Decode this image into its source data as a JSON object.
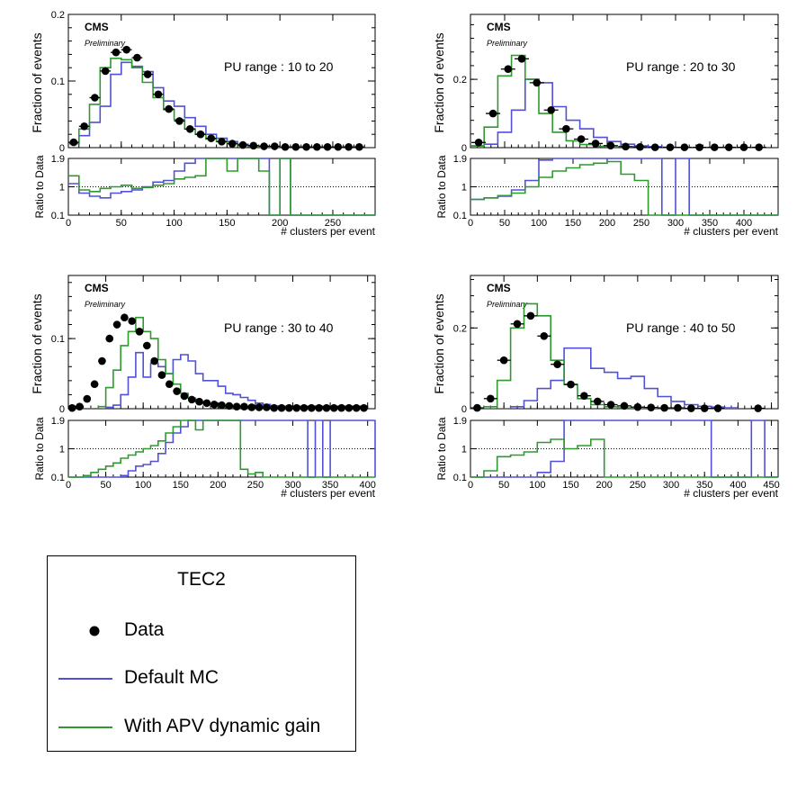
{
  "colors": {
    "data": "#000000",
    "default_mc": "#5050d8",
    "apv": "#2e9a2e"
  },
  "common": {
    "experiment": "CMS",
    "status": "Preliminary",
    "ylabel_top": "Fraction of events",
    "ylabel_ratio": "Ratio to Data",
    "xlabel": "# clusters per event"
  },
  "legend": {
    "title": "TEC2",
    "entries": [
      {
        "label": "Data",
        "icon": "filled-circle-marker"
      },
      {
        "label": "Default MC",
        "icon": "blue-line"
      },
      {
        "label": "With APV dynamic gain",
        "icon": "green-line"
      }
    ]
  },
  "chart_data": [
    {
      "type": "histogram",
      "annotation": "PU range : 10 to 20",
      "xlim": [
        0,
        290
      ],
      "xticks": [
        0,
        50,
        100,
        150,
        200,
        250
      ],
      "ylim": [
        0,
        0.2
      ],
      "yticks": [
        {
          "v": 0,
          "l": "0"
        },
        {
          "v": 0.1,
          "l": "0.1"
        },
        {
          "v": 0.2,
          "l": "0.2"
        }
      ],
      "ratio_ylim": [
        0.1,
        1.9
      ],
      "ratio_yticks": [
        "0.1",
        "1",
        "1.9"
      ],
      "data_x": [
        5,
        15,
        25,
        35,
        45,
        55,
        65,
        75,
        85,
        95,
        105,
        115,
        125,
        135,
        145,
        155,
        165,
        175,
        185,
        195,
        205,
        215,
        225,
        235,
        245,
        255,
        265,
        275
      ],
      "data_y": [
        0.008,
        0.032,
        0.075,
        0.115,
        0.143,
        0.147,
        0.135,
        0.11,
        0.08,
        0.058,
        0.04,
        0.028,
        0.02,
        0.014,
        0.009,
        0.006,
        0.004,
        0.003,
        0.002,
        0.002,
        0.001,
        0.001,
        0.001,
        0.001,
        0.001,
        0.001,
        0.001,
        0.001
      ],
      "mc_edges": [
        0,
        10,
        20,
        30,
        40,
        50,
        60,
        70,
        80,
        90,
        100,
        110,
        120,
        130,
        140,
        150,
        160,
        170,
        180,
        190,
        200,
        210
      ],
      "mc_default": [
        0.006,
        0.018,
        0.038,
        0.062,
        0.11,
        0.128,
        0.122,
        0.114,
        0.09,
        0.07,
        0.062,
        0.045,
        0.032,
        0.02,
        0.014,
        0.009,
        0.005,
        0.003,
        0.002,
        0.001,
        0
      ],
      "mc_apv": [
        0.006,
        0.028,
        0.065,
        0.12,
        0.134,
        0.132,
        0.12,
        0.098,
        0.075,
        0.057,
        0.042,
        0.028,
        0.02,
        0.013,
        0.009,
        0.006,
        0.003,
        0.002,
        0.001,
        0.001,
        0
      ],
      "ratio_edges": [
        0,
        10,
        20,
        30,
        40,
        50,
        60,
        70,
        80,
        90,
        100,
        110,
        120,
        130,
        140,
        150,
        160,
        170,
        180,
        190,
        200,
        210,
        220,
        290
      ],
      "ratio_default": [
        1.1,
        0.8,
        0.7,
        0.65,
        0.8,
        0.85,
        0.9,
        1.0,
        1.15,
        1.2,
        1.5,
        1.75,
        1.9,
        1.9,
        1.9,
        1.9,
        1.9,
        1.9,
        1.9,
        0.1,
        1.9,
        0.1,
        0.1
      ],
      "ratio_apv": [
        1.35,
        0.9,
        0.85,
        0.95,
        1.0,
        1.05,
        0.95,
        0.98,
        1.05,
        1.1,
        1.25,
        1.3,
        1.35,
        1.9,
        1.9,
        1.5,
        1.9,
        1.9,
        1.5,
        0.1,
        1.9,
        0.1,
        0.1
      ]
    },
    {
      "type": "histogram",
      "annotation": "PU range : 20 to 30",
      "xlim": [
        0,
        450
      ],
      "xticks": [
        0,
        50,
        100,
        150,
        200,
        250,
        300,
        350,
        400
      ],
      "ylim": [
        0,
        0.39
      ],
      "yticks": [
        {
          "v": 0,
          "l": "0"
        },
        {
          "v": 0.2,
          "l": "0.2"
        }
      ],
      "ratio_ylim": [
        0.1,
        1.9
      ],
      "ratio_yticks": [
        "0.1",
        "1",
        "1.9"
      ],
      "data_x": [
        12,
        33,
        55,
        75,
        97,
        118,
        140,
        162,
        183,
        205,
        227,
        248,
        270,
        292,
        313,
        335,
        357,
        378,
        400,
        422
      ],
      "data_y": [
        0.015,
        0.1,
        0.23,
        0.26,
        0.19,
        0.11,
        0.055,
        0.025,
        0.012,
        0.006,
        0.003,
        0.002,
        0.001,
        0.001,
        0.001,
        0.001,
        0.001,
        0.001,
        0.001,
        0.001
      ],
      "mc_edges": [
        0,
        20,
        40,
        60,
        80,
        100,
        120,
        140,
        160,
        180,
        200,
        220,
        240,
        260,
        280,
        300,
        320
      ],
      "mc_default": [
        0.005,
        0.01,
        0.045,
        0.11,
        0.2,
        0.19,
        0.12,
        0.08,
        0.055,
        0.03,
        0.018,
        0.01,
        0.005,
        0.003,
        0.001,
        0
      ],
      "mc_apv": [
        0.005,
        0.06,
        0.21,
        0.27,
        0.2,
        0.1,
        0.045,
        0.02,
        0.009,
        0.004,
        0.002,
        0.001,
        0,
        0,
        0,
        0
      ],
      "ratio_edges": [
        0,
        20,
        40,
        60,
        80,
        100,
        120,
        140,
        160,
        180,
        200,
        220,
        240,
        260,
        280,
        300,
        320,
        450
      ],
      "ratio_default": [
        0.6,
        0.65,
        0.7,
        0.9,
        1.2,
        1.85,
        1.9,
        1.9,
        1.9,
        1.9,
        1.9,
        1.9,
        1.9,
        1.9,
        0.1,
        1.9,
        0.1
      ],
      "ratio_apv": [
        0.6,
        0.65,
        0.72,
        0.8,
        1.0,
        1.3,
        1.5,
        1.6,
        1.7,
        1.75,
        1.8,
        1.4,
        1.2,
        0.1,
        0.1,
        0.1,
        0.1
      ]
    },
    {
      "type": "histogram",
      "annotation": "PU range : 30 to 40",
      "xlim": [
        0,
        410
      ],
      "xticks": [
        0,
        50,
        100,
        150,
        200,
        250,
        300,
        350,
        400
      ],
      "ylim": [
        0,
        0.19
      ],
      "yticks": [
        {
          "v": 0,
          "l": "0"
        },
        {
          "v": 0.1,
          "l": "0.1"
        }
      ],
      "ratio_ylim": [
        0.1,
        1.9
      ],
      "ratio_yticks": [
        "0.1",
        "1",
        "1.9"
      ],
      "data_x": [
        5,
        15,
        25,
        35,
        45,
        55,
        65,
        75,
        85,
        95,
        105,
        115,
        125,
        135,
        145,
        155,
        165,
        175,
        185,
        195,
        205,
        215,
        225,
        235,
        245,
        255,
        265,
        275,
        285,
        295,
        305,
        315,
        325,
        335,
        345,
        355,
        365,
        375,
        385,
        395
      ],
      "data_y": [
        0.001,
        0.003,
        0.014,
        0.035,
        0.068,
        0.1,
        0.12,
        0.13,
        0.125,
        0.11,
        0.09,
        0.068,
        0.048,
        0.035,
        0.025,
        0.018,
        0.013,
        0.01,
        0.008,
        0.006,
        0.005,
        0.004,
        0.003,
        0.003,
        0.002,
        0.002,
        0.002,
        0.001,
        0.001,
        0.001,
        0.001,
        0.001,
        0.001,
        0.001,
        0.001,
        0.001,
        0.001,
        0.001,
        0.001,
        0.001
      ],
      "mc_edges": [
        0,
        10,
        20,
        30,
        40,
        50,
        60,
        70,
        80,
        90,
        100,
        110,
        120,
        130,
        140,
        150,
        160,
        170,
        180,
        190,
        200,
        210,
        220,
        230,
        240,
        250,
        260,
        270,
        280,
        290,
        300,
        310,
        320,
        330,
        340,
        350
      ],
      "mc_default": [
        0,
        0,
        0,
        0,
        0,
        0.002,
        0.005,
        0.02,
        0.045,
        0.08,
        0.045,
        0.065,
        0.06,
        0.05,
        0.07,
        0.077,
        0.068,
        0.05,
        0.04,
        0.04,
        0.032,
        0.022,
        0.02,
        0.016,
        0.012,
        0.008,
        0.006,
        0.004,
        0.003,
        0.002,
        0.002,
        0.001,
        0.001,
        0.001,
        0
      ],
      "mc_apv": [
        0,
        0,
        0,
        0,
        0.003,
        0.03,
        0.055,
        0.09,
        0.11,
        0.13,
        0.11,
        0.1,
        0.07,
        0.05,
        0.035,
        0.022,
        0.015,
        0.01,
        0.007,
        0.005,
        0.003,
        0.002,
        0.001,
        0.001,
        0,
        0,
        0,
        0,
        0,
        0,
        0,
        0,
        0,
        0,
        0
      ],
      "ratio_edges": [
        0,
        10,
        20,
        30,
        40,
        50,
        60,
        70,
        80,
        90,
        100,
        110,
        120,
        130,
        140,
        150,
        160,
        170,
        180,
        190,
        200,
        210,
        220,
        230,
        240,
        250,
        260,
        270,
        280,
        290,
        300,
        310,
        320,
        330,
        340,
        350,
        410
      ],
      "ratio_default": [
        0.1,
        0.1,
        0.1,
        0.1,
        0.1,
        0.1,
        0.1,
        0.15,
        0.3,
        0.45,
        0.5,
        0.6,
        0.85,
        1.2,
        1.5,
        1.7,
        1.9,
        1.9,
        1.9,
        1.9,
        1.9,
        1.9,
        1.9,
        1.9,
        1.9,
        1.9,
        1.9,
        1.9,
        1.9,
        1.9,
        1.9,
        1.9,
        0.1,
        1.9,
        0.1,
        1.9,
        0.1
      ],
      "ratio_apv": [
        0.1,
        0.1,
        0.15,
        0.25,
        0.35,
        0.45,
        0.55,
        0.7,
        0.8,
        0.9,
        1.0,
        1.1,
        1.25,
        1.5,
        1.7,
        1.9,
        1.9,
        1.6,
        1.9,
        1.9,
        1.9,
        1.9,
        1.9,
        0.35,
        0.2,
        0.25,
        0.1,
        0.1,
        0.1,
        0.1,
        0.1,
        0.1,
        0.1,
        0.1,
        0.1,
        0.1,
        0.1
      ]
    },
    {
      "type": "histogram",
      "annotation": "PU range : 40 to 50",
      "xlim": [
        0,
        460
      ],
      "xticks": [
        0,
        50,
        100,
        150,
        200,
        250,
        300,
        350,
        400,
        450
      ],
      "ylim": [
        0,
        0.33
      ],
      "yticks": [
        {
          "v": 0,
          "l": "0"
        },
        {
          "v": 0.2,
          "l": "0.2"
        }
      ],
      "ratio_ylim": [
        0.1,
        1.9
      ],
      "ratio_yticks": [
        "0.1",
        "1",
        "1.9"
      ],
      "data_x": [
        10,
        30,
        50,
        70,
        90,
        110,
        130,
        150,
        170,
        190,
        210,
        230,
        250,
        270,
        290,
        310,
        330,
        350,
        370,
        430
      ],
      "data_y": [
        0.002,
        0.025,
        0.12,
        0.21,
        0.23,
        0.18,
        0.11,
        0.06,
        0.032,
        0.018,
        0.01,
        0.007,
        0.004,
        0.003,
        0.002,
        0.002,
        0.001,
        0.001,
        0.001,
        0.001
      ],
      "mc_edges": [
        0,
        20,
        40,
        60,
        80,
        100,
        120,
        140,
        160,
        180,
        200,
        220,
        240,
        260,
        280,
        300,
        320,
        340,
        360,
        380,
        400
      ],
      "mc_default": [
        0,
        0,
        0,
        0.005,
        0.02,
        0.05,
        0.07,
        0.15,
        0.15,
        0.1,
        0.09,
        0.075,
        0.08,
        0.05,
        0.03,
        0.018,
        0.01,
        0.006,
        0.004,
        0.002
      ],
      "mc_apv": [
        0,
        0.005,
        0.07,
        0.2,
        0.26,
        0.23,
        0.12,
        0.06,
        0.025,
        0.01,
        0.005,
        0.002,
        0.001,
        0,
        0,
        0,
        0,
        0,
        0,
        0
      ],
      "ratio_edges": [
        0,
        20,
        40,
        60,
        80,
        100,
        120,
        140,
        160,
        180,
        200,
        220,
        240,
        260,
        280,
        300,
        320,
        340,
        360,
        380,
        400,
        420,
        440,
        460
      ],
      "ratio_default": [
        0.1,
        0.1,
        0.1,
        0.1,
        0.1,
        0.25,
        0.6,
        1.9,
        1.9,
        1.9,
        1.9,
        1.9,
        1.9,
        1.9,
        1.9,
        1.9,
        1.9,
        1.9,
        0.1,
        0.1,
        0.1,
        1.9,
        0.1
      ],
      "ratio_apv": [
        0.1,
        0.3,
        0.75,
        0.8,
        0.9,
        1.2,
        1.3,
        1.0,
        1.1,
        1.3,
        0.1,
        0.1,
        0.1,
        0.1,
        0.1,
        0.1,
        0.1,
        0.1,
        0.1,
        0.1,
        0.1,
        0.1,
        0.1
      ]
    }
  ]
}
